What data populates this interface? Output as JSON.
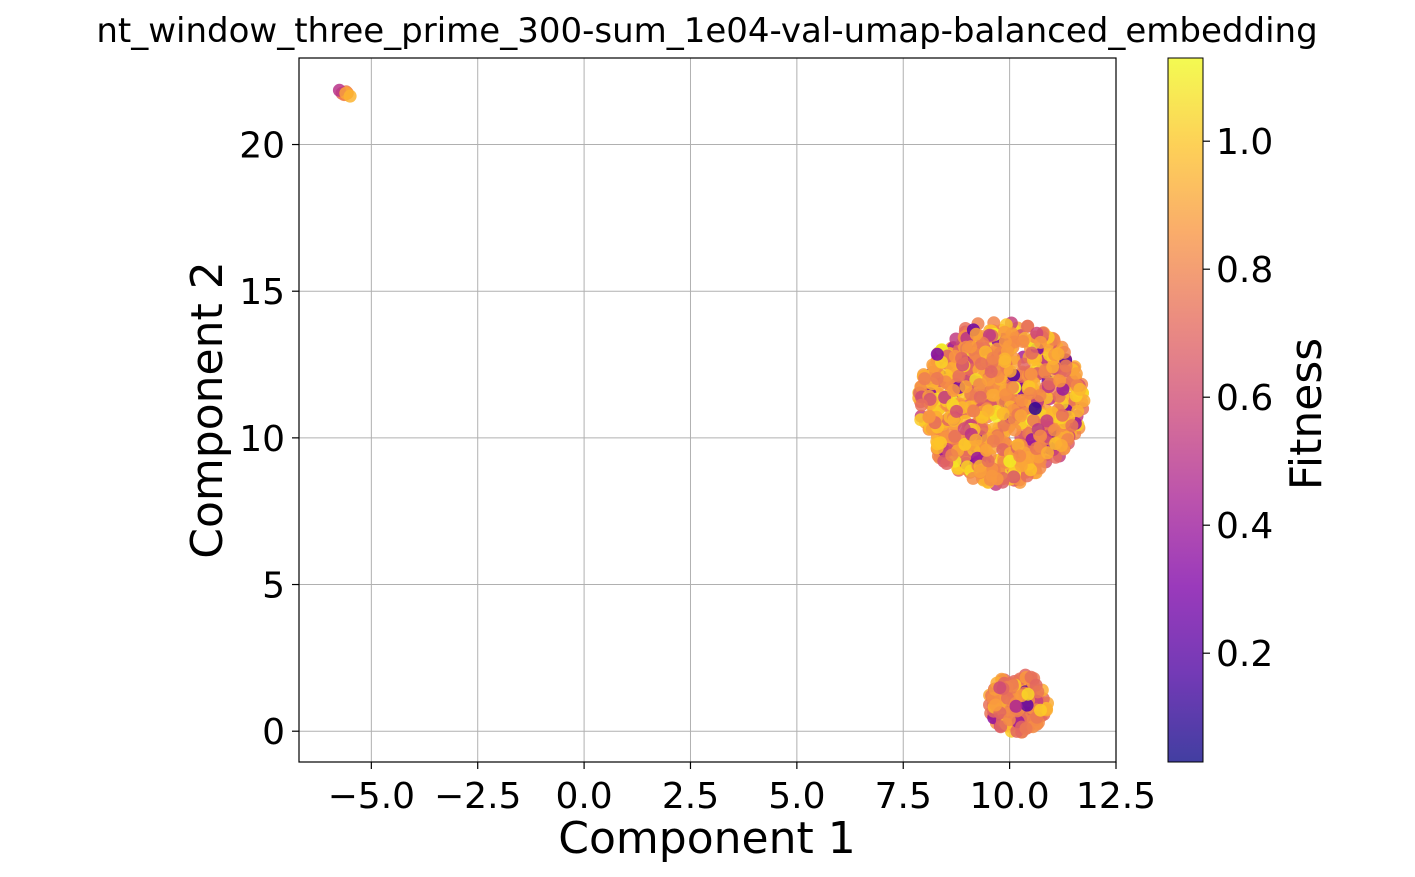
{
  "chart_data": {
    "type": "scatter",
    "title": "nt_window_three_prime_300-sum_1e04-val-umap-balanced_embedding",
    "xlabel": "Component 1",
    "ylabel": "Component 2",
    "xlim": [
      -6.7,
      12.5
    ],
    "ylim": [
      -1.05,
      22.95
    ],
    "xticks": [
      -5.0,
      -2.5,
      0.0,
      2.5,
      5.0,
      7.5,
      10.0,
      12.5
    ],
    "xtick_labels": [
      "−5.0",
      "−2.5",
      "0.0",
      "2.5",
      "5.0",
      "7.5",
      "10.0",
      "12.5"
    ],
    "yticks": [
      0,
      5,
      10,
      15,
      20
    ],
    "ytick_labels": [
      "0",
      "5",
      "10",
      "15",
      "20"
    ],
    "grid": true,
    "colormap": "plasma",
    "colorbar": {
      "label": "Fitness",
      "range": [
        0.03,
        1.13
      ],
      "ticks": [
        0.2,
        0.4,
        0.6,
        0.8,
        1.0
      ],
      "tick_labels": [
        "0.2",
        "0.4",
        "0.6",
        "0.8",
        "1.0"
      ]
    },
    "clusters": [
      {
        "center": [
          -5.6,
          21.75
        ],
        "x_spread": 0.25,
        "y_spread": 0.12,
        "count": 6,
        "mean_fitness": 0.85
      },
      {
        "center": [
          9.8,
          11.2
        ],
        "x_spread": 3.9,
        "y_spread": 5.6,
        "count": 900,
        "mean_fitness": 0.88
      },
      {
        "center": [
          10.2,
          0.95
        ],
        "x_spread": 1.4,
        "y_spread": 2.0,
        "count": 170,
        "mean_fitness": 0.8
      }
    ],
    "points": [
      {
        "x": -5.75,
        "y": 21.85,
        "fitness": 0.5
      },
      {
        "x": -5.6,
        "y": 21.75,
        "fitness": 0.9
      },
      {
        "x": -5.5,
        "y": 21.65,
        "fitness": 0.95
      },
      {
        "x": 8.3,
        "y": 12.85,
        "fitness": 0.3
      },
      {
        "x": 10.6,
        "y": 11.0,
        "fitness": 0.1
      },
      {
        "x": 10.15,
        "y": 0.85,
        "fitness": 0.45
      }
    ]
  }
}
